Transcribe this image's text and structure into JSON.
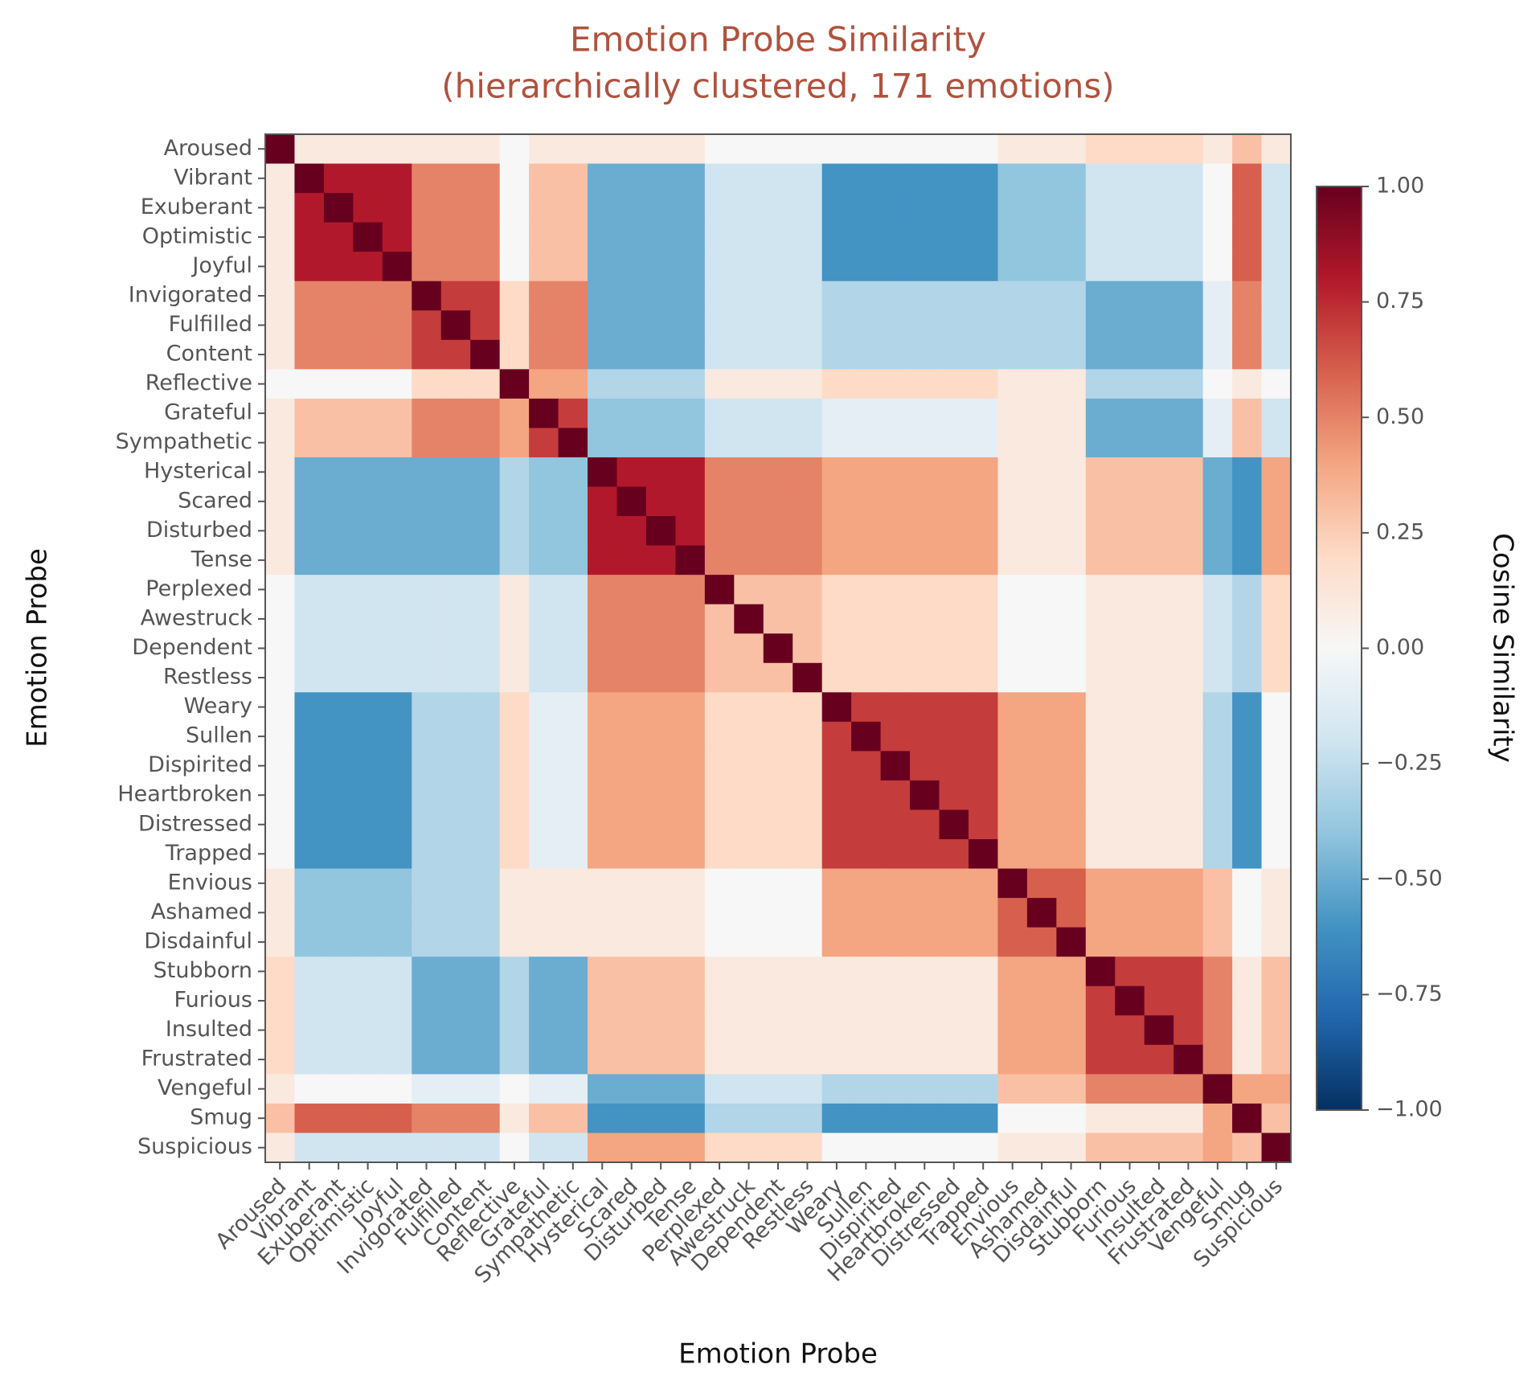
{
  "chart_data": {
    "type": "heatmap",
    "title": "Emotion Probe Similarity",
    "subtitle": "(hierarchically clustered, 171 emotions)",
    "x_label": "Emotion Probe",
    "y_label": "Emotion Probe",
    "colorbar_label": "Cosine Similarity",
    "categories": [
      "Aroused",
      "Vibrant",
      "Exuberant",
      "Optimistic",
      "Joyful",
      "Invigorated",
      "Fulfilled",
      "Content",
      "Reflective",
      "Grateful",
      "Sympathetic",
      "Hysterical",
      "Scared",
      "Disturbed",
      "Tense",
      "Perplexed",
      "Awestruck",
      "Dependent",
      "Restless",
      "Weary",
      "Sullen",
      "Dispirited",
      "Heartbroken",
      "Distressed",
      "Trapped",
      "Envious",
      "Ashamed",
      "Disdainful",
      "Stubborn",
      "Furious",
      "Insulted",
      "Frustrated",
      "Vengeful",
      "Smug",
      "Suspicious"
    ],
    "zlim": [
      -1,
      1
    ],
    "zticks": [
      {
        "value": 1,
        "label": "1.00"
      },
      {
        "value": 0.75,
        "label": "0.75"
      },
      {
        "value": 0.5,
        "label": "0.50"
      },
      {
        "value": 0.25,
        "label": "0.25"
      },
      {
        "value": 0,
        "label": "0.00"
      },
      {
        "value": -0.25,
        "label": "−0.25"
      },
      {
        "value": -0.5,
        "label": "−0.50"
      },
      {
        "value": -0.75,
        "label": "−0.75"
      },
      {
        "value": -1,
        "label": "−1.00"
      }
    ],
    "colormap": [
      "#053061",
      "#2166ac",
      "#4393c3",
      "#92c5de",
      "#d1e5f0",
      "#f7f7f7",
      "#fddbc7",
      "#f4a582",
      "#d6604d",
      "#b2182b",
      "#67001f"
    ],
    "values": [
      [
        1,
        0.1,
        0.1,
        0.1,
        0.1,
        0.1,
        0.1,
        0.1,
        0,
        0.1,
        0.1,
        0.1,
        0.1,
        0.1,
        0.1,
        0,
        0,
        0,
        0,
        0,
        0,
        0,
        0,
        0,
        0,
        0.1,
        0.1,
        0.1,
        0.2,
        0.2,
        0.2,
        0.2,
        0.1,
        0.3,
        0.1
      ],
      [
        0.1,
        1,
        0.8,
        0.8,
        0.8,
        0.5,
        0.5,
        0.5,
        0,
        0.3,
        0.3,
        -0.5,
        -0.5,
        -0.5,
        -0.5,
        -0.2,
        -0.2,
        -0.2,
        -0.2,
        -0.6,
        -0.6,
        -0.6,
        -0.6,
        -0.6,
        -0.6,
        -0.4,
        -0.4,
        -0.4,
        -0.2,
        -0.2,
        -0.2,
        -0.2,
        0,
        0.6,
        -0.2
      ],
      [
        0.1,
        0.8,
        1,
        0.8,
        0.8,
        0.5,
        0.5,
        0.5,
        0,
        0.3,
        0.3,
        -0.5,
        -0.5,
        -0.5,
        -0.5,
        -0.2,
        -0.2,
        -0.2,
        -0.2,
        -0.6,
        -0.6,
        -0.6,
        -0.6,
        -0.6,
        -0.6,
        -0.4,
        -0.4,
        -0.4,
        -0.2,
        -0.2,
        -0.2,
        -0.2,
        0,
        0.6,
        -0.2
      ],
      [
        0.1,
        0.8,
        0.8,
        1,
        0.8,
        0.5,
        0.5,
        0.5,
        0,
        0.3,
        0.3,
        -0.5,
        -0.5,
        -0.5,
        -0.5,
        -0.2,
        -0.2,
        -0.2,
        -0.2,
        -0.6,
        -0.6,
        -0.6,
        -0.6,
        -0.6,
        -0.6,
        -0.4,
        -0.4,
        -0.4,
        -0.2,
        -0.2,
        -0.2,
        -0.2,
        0,
        0.6,
        -0.2
      ],
      [
        0.1,
        0.8,
        0.8,
        0.8,
        1,
        0.5,
        0.5,
        0.5,
        0,
        0.3,
        0.3,
        -0.5,
        -0.5,
        -0.5,
        -0.5,
        -0.2,
        -0.2,
        -0.2,
        -0.2,
        -0.6,
        -0.6,
        -0.6,
        -0.6,
        -0.6,
        -0.6,
        -0.4,
        -0.4,
        -0.4,
        -0.2,
        -0.2,
        -0.2,
        -0.2,
        0,
        0.6,
        -0.2
      ],
      [
        0.1,
        0.5,
        0.5,
        0.5,
        0.5,
        1,
        0.7,
        0.7,
        0.2,
        0.5,
        0.5,
        -0.5,
        -0.5,
        -0.5,
        -0.5,
        -0.2,
        -0.2,
        -0.2,
        -0.2,
        -0.3,
        -0.3,
        -0.3,
        -0.3,
        -0.3,
        -0.3,
        -0.3,
        -0.3,
        -0.3,
        -0.5,
        -0.5,
        -0.5,
        -0.5,
        -0.1,
        0.5,
        -0.2
      ],
      [
        0.1,
        0.5,
        0.5,
        0.5,
        0.5,
        0.7,
        1,
        0.7,
        0.2,
        0.5,
        0.5,
        -0.5,
        -0.5,
        -0.5,
        -0.5,
        -0.2,
        -0.2,
        -0.2,
        -0.2,
        -0.3,
        -0.3,
        -0.3,
        -0.3,
        -0.3,
        -0.3,
        -0.3,
        -0.3,
        -0.3,
        -0.5,
        -0.5,
        -0.5,
        -0.5,
        -0.1,
        0.5,
        -0.2
      ],
      [
        0.1,
        0.5,
        0.5,
        0.5,
        0.5,
        0.7,
        0.7,
        1,
        0.2,
        0.5,
        0.5,
        -0.5,
        -0.5,
        -0.5,
        -0.5,
        -0.2,
        -0.2,
        -0.2,
        -0.2,
        -0.3,
        -0.3,
        -0.3,
        -0.3,
        -0.3,
        -0.3,
        -0.3,
        -0.3,
        -0.3,
        -0.5,
        -0.5,
        -0.5,
        -0.5,
        -0.1,
        0.5,
        -0.2
      ],
      [
        0,
        0,
        0,
        0,
        0,
        0.2,
        0.2,
        0.2,
        1,
        0.4,
        0.4,
        -0.3,
        -0.3,
        -0.3,
        -0.3,
        0.1,
        0.1,
        0.1,
        0.1,
        0.2,
        0.2,
        0.2,
        0.2,
        0.2,
        0.2,
        0.1,
        0.1,
        0.1,
        -0.3,
        -0.3,
        -0.3,
        -0.3,
        0,
        0.1,
        0
      ],
      [
        0.1,
        0.3,
        0.3,
        0.3,
        0.3,
        0.5,
        0.5,
        0.5,
        0.4,
        1,
        0.7,
        -0.4,
        -0.4,
        -0.4,
        -0.4,
        -0.2,
        -0.2,
        -0.2,
        -0.2,
        -0.1,
        -0.1,
        -0.1,
        -0.1,
        -0.1,
        -0.1,
        0.1,
        0.1,
        0.1,
        -0.5,
        -0.5,
        -0.5,
        -0.5,
        -0.1,
        0.3,
        -0.2
      ],
      [
        0.1,
        0.3,
        0.3,
        0.3,
        0.3,
        0.5,
        0.5,
        0.5,
        0.4,
        0.7,
        1,
        -0.4,
        -0.4,
        -0.4,
        -0.4,
        -0.2,
        -0.2,
        -0.2,
        -0.2,
        -0.1,
        -0.1,
        -0.1,
        -0.1,
        -0.1,
        -0.1,
        0.1,
        0.1,
        0.1,
        -0.5,
        -0.5,
        -0.5,
        -0.5,
        -0.1,
        0.3,
        -0.2
      ],
      [
        0.1,
        -0.5,
        -0.5,
        -0.5,
        -0.5,
        -0.5,
        -0.5,
        -0.5,
        -0.3,
        -0.4,
        -0.4,
        1,
        0.8,
        0.8,
        0.8,
        0.5,
        0.5,
        0.5,
        0.5,
        0.4,
        0.4,
        0.4,
        0.4,
        0.4,
        0.4,
        0.1,
        0.1,
        0.1,
        0.3,
        0.3,
        0.3,
        0.3,
        -0.5,
        -0.6,
        0.4
      ],
      [
        0.1,
        -0.5,
        -0.5,
        -0.5,
        -0.5,
        -0.5,
        -0.5,
        -0.5,
        -0.3,
        -0.4,
        -0.4,
        0.8,
        1,
        0.8,
        0.8,
        0.5,
        0.5,
        0.5,
        0.5,
        0.4,
        0.4,
        0.4,
        0.4,
        0.4,
        0.4,
        0.1,
        0.1,
        0.1,
        0.3,
        0.3,
        0.3,
        0.3,
        -0.5,
        -0.6,
        0.4
      ],
      [
        0.1,
        -0.5,
        -0.5,
        -0.5,
        -0.5,
        -0.5,
        -0.5,
        -0.5,
        -0.3,
        -0.4,
        -0.4,
        0.8,
        0.8,
        1,
        0.8,
        0.5,
        0.5,
        0.5,
        0.5,
        0.4,
        0.4,
        0.4,
        0.4,
        0.4,
        0.4,
        0.1,
        0.1,
        0.1,
        0.3,
        0.3,
        0.3,
        0.3,
        -0.5,
        -0.6,
        0.4
      ],
      [
        0.1,
        -0.5,
        -0.5,
        -0.5,
        -0.5,
        -0.5,
        -0.5,
        -0.5,
        -0.3,
        -0.4,
        -0.4,
        0.8,
        0.8,
        0.8,
        1,
        0.5,
        0.5,
        0.5,
        0.5,
        0.4,
        0.4,
        0.4,
        0.4,
        0.4,
        0.4,
        0.1,
        0.1,
        0.1,
        0.3,
        0.3,
        0.3,
        0.3,
        -0.5,
        -0.6,
        0.4
      ],
      [
        0,
        -0.2,
        -0.2,
        -0.2,
        -0.2,
        -0.2,
        -0.2,
        -0.2,
        0.1,
        -0.2,
        -0.2,
        0.5,
        0.5,
        0.5,
        0.5,
        1,
        0.3,
        0.3,
        0.3,
        0.2,
        0.2,
        0.2,
        0.2,
        0.2,
        0.2,
        0,
        0,
        0,
        0.1,
        0.1,
        0.1,
        0.1,
        -0.2,
        -0.3,
        0.2
      ],
      [
        0,
        -0.2,
        -0.2,
        -0.2,
        -0.2,
        -0.2,
        -0.2,
        -0.2,
        0.1,
        -0.2,
        -0.2,
        0.5,
        0.5,
        0.5,
        0.5,
        0.3,
        1,
        0.3,
        0.3,
        0.2,
        0.2,
        0.2,
        0.2,
        0.2,
        0.2,
        0,
        0,
        0,
        0.1,
        0.1,
        0.1,
        0.1,
        -0.2,
        -0.3,
        0.2
      ],
      [
        0,
        -0.2,
        -0.2,
        -0.2,
        -0.2,
        -0.2,
        -0.2,
        -0.2,
        0.1,
        -0.2,
        -0.2,
        0.5,
        0.5,
        0.5,
        0.5,
        0.3,
        0.3,
        1,
        0.3,
        0.2,
        0.2,
        0.2,
        0.2,
        0.2,
        0.2,
        0,
        0,
        0,
        0.1,
        0.1,
        0.1,
        0.1,
        -0.2,
        -0.3,
        0.2
      ],
      [
        0,
        -0.2,
        -0.2,
        -0.2,
        -0.2,
        -0.2,
        -0.2,
        -0.2,
        0.1,
        -0.2,
        -0.2,
        0.5,
        0.5,
        0.5,
        0.5,
        0.3,
        0.3,
        0.3,
        1,
        0.2,
        0.2,
        0.2,
        0.2,
        0.2,
        0.2,
        0,
        0,
        0,
        0.1,
        0.1,
        0.1,
        0.1,
        -0.2,
        -0.3,
        0.2
      ],
      [
        0,
        -0.6,
        -0.6,
        -0.6,
        -0.6,
        -0.3,
        -0.3,
        -0.3,
        0.2,
        -0.1,
        -0.1,
        0.4,
        0.4,
        0.4,
        0.4,
        0.2,
        0.2,
        0.2,
        0.2,
        1,
        0.7,
        0.7,
        0.7,
        0.7,
        0.7,
        0.4,
        0.4,
        0.4,
        0.1,
        0.1,
        0.1,
        0.1,
        -0.3,
        -0.6,
        0
      ],
      [
        0,
        -0.6,
        -0.6,
        -0.6,
        -0.6,
        -0.3,
        -0.3,
        -0.3,
        0.2,
        -0.1,
        -0.1,
        0.4,
        0.4,
        0.4,
        0.4,
        0.2,
        0.2,
        0.2,
        0.2,
        0.7,
        1,
        0.7,
        0.7,
        0.7,
        0.7,
        0.4,
        0.4,
        0.4,
        0.1,
        0.1,
        0.1,
        0.1,
        -0.3,
        -0.6,
        0
      ],
      [
        0,
        -0.6,
        -0.6,
        -0.6,
        -0.6,
        -0.3,
        -0.3,
        -0.3,
        0.2,
        -0.1,
        -0.1,
        0.4,
        0.4,
        0.4,
        0.4,
        0.2,
        0.2,
        0.2,
        0.2,
        0.7,
        0.7,
        1,
        0.7,
        0.7,
        0.7,
        0.4,
        0.4,
        0.4,
        0.1,
        0.1,
        0.1,
        0.1,
        -0.3,
        -0.6,
        0
      ],
      [
        0,
        -0.6,
        -0.6,
        -0.6,
        -0.6,
        -0.3,
        -0.3,
        -0.3,
        0.2,
        -0.1,
        -0.1,
        0.4,
        0.4,
        0.4,
        0.4,
        0.2,
        0.2,
        0.2,
        0.2,
        0.7,
        0.7,
        0.7,
        1,
        0.7,
        0.7,
        0.4,
        0.4,
        0.4,
        0.1,
        0.1,
        0.1,
        0.1,
        -0.3,
        -0.6,
        0
      ],
      [
        0,
        -0.6,
        -0.6,
        -0.6,
        -0.6,
        -0.3,
        -0.3,
        -0.3,
        0.2,
        -0.1,
        -0.1,
        0.4,
        0.4,
        0.4,
        0.4,
        0.2,
        0.2,
        0.2,
        0.2,
        0.7,
        0.7,
        0.7,
        0.7,
        1,
        0.7,
        0.4,
        0.4,
        0.4,
        0.1,
        0.1,
        0.1,
        0.1,
        -0.3,
        -0.6,
        0
      ],
      [
        0,
        -0.6,
        -0.6,
        -0.6,
        -0.6,
        -0.3,
        -0.3,
        -0.3,
        0.2,
        -0.1,
        -0.1,
        0.4,
        0.4,
        0.4,
        0.4,
        0.2,
        0.2,
        0.2,
        0.2,
        0.7,
        0.7,
        0.7,
        0.7,
        0.7,
        1,
        0.4,
        0.4,
        0.4,
        0.1,
        0.1,
        0.1,
        0.1,
        -0.3,
        -0.6,
        0
      ],
      [
        0.1,
        -0.4,
        -0.4,
        -0.4,
        -0.4,
        -0.3,
        -0.3,
        -0.3,
        0.1,
        0.1,
        0.1,
        0.1,
        0.1,
        0.1,
        0.1,
        0,
        0,
        0,
        0,
        0.4,
        0.4,
        0.4,
        0.4,
        0.4,
        0.4,
        1,
        0.6,
        0.6,
        0.4,
        0.4,
        0.4,
        0.4,
        0.3,
        0,
        0.1
      ],
      [
        0.1,
        -0.4,
        -0.4,
        -0.4,
        -0.4,
        -0.3,
        -0.3,
        -0.3,
        0.1,
        0.1,
        0.1,
        0.1,
        0.1,
        0.1,
        0.1,
        0,
        0,
        0,
        0,
        0.4,
        0.4,
        0.4,
        0.4,
        0.4,
        0.4,
        0.6,
        1,
        0.6,
        0.4,
        0.4,
        0.4,
        0.4,
        0.3,
        0,
        0.1
      ],
      [
        0.1,
        -0.4,
        -0.4,
        -0.4,
        -0.4,
        -0.3,
        -0.3,
        -0.3,
        0.1,
        0.1,
        0.1,
        0.1,
        0.1,
        0.1,
        0.1,
        0,
        0,
        0,
        0,
        0.4,
        0.4,
        0.4,
        0.4,
        0.4,
        0.4,
        0.6,
        0.6,
        1,
        0.4,
        0.4,
        0.4,
        0.4,
        0.3,
        0,
        0.1
      ],
      [
        0.2,
        -0.2,
        -0.2,
        -0.2,
        -0.2,
        -0.5,
        -0.5,
        -0.5,
        -0.3,
        -0.5,
        -0.5,
        0.3,
        0.3,
        0.3,
        0.3,
        0.1,
        0.1,
        0.1,
        0.1,
        0.1,
        0.1,
        0.1,
        0.1,
        0.1,
        0.1,
        0.4,
        0.4,
        0.4,
        1,
        0.7,
        0.7,
        0.7,
        0.5,
        0.1,
        0.3
      ],
      [
        0.2,
        -0.2,
        -0.2,
        -0.2,
        -0.2,
        -0.5,
        -0.5,
        -0.5,
        -0.3,
        -0.5,
        -0.5,
        0.3,
        0.3,
        0.3,
        0.3,
        0.1,
        0.1,
        0.1,
        0.1,
        0.1,
        0.1,
        0.1,
        0.1,
        0.1,
        0.1,
        0.4,
        0.4,
        0.4,
        0.7,
        1,
        0.7,
        0.7,
        0.5,
        0.1,
        0.3
      ],
      [
        0.2,
        -0.2,
        -0.2,
        -0.2,
        -0.2,
        -0.5,
        -0.5,
        -0.5,
        -0.3,
        -0.5,
        -0.5,
        0.3,
        0.3,
        0.3,
        0.3,
        0.1,
        0.1,
        0.1,
        0.1,
        0.1,
        0.1,
        0.1,
        0.1,
        0.1,
        0.1,
        0.4,
        0.4,
        0.4,
        0.7,
        0.7,
        1,
        0.7,
        0.5,
        0.1,
        0.3
      ],
      [
        0.2,
        -0.2,
        -0.2,
        -0.2,
        -0.2,
        -0.5,
        -0.5,
        -0.5,
        -0.3,
        -0.5,
        -0.5,
        0.3,
        0.3,
        0.3,
        0.3,
        0.1,
        0.1,
        0.1,
        0.1,
        0.1,
        0.1,
        0.1,
        0.1,
        0.1,
        0.1,
        0.4,
        0.4,
        0.4,
        0.7,
        0.7,
        0.7,
        1,
        0.5,
        0.1,
        0.3
      ],
      [
        0.1,
        0,
        0,
        0,
        0,
        -0.1,
        -0.1,
        -0.1,
        0,
        -0.1,
        -0.1,
        -0.5,
        -0.5,
        -0.5,
        -0.5,
        -0.2,
        -0.2,
        -0.2,
        -0.2,
        -0.3,
        -0.3,
        -0.3,
        -0.3,
        -0.3,
        -0.3,
        0.3,
        0.3,
        0.3,
        0.5,
        0.5,
        0.5,
        0.5,
        1,
        0.4,
        0.4
      ],
      [
        0.3,
        0.6,
        0.6,
        0.6,
        0.6,
        0.5,
        0.5,
        0.5,
        0.1,
        0.3,
        0.3,
        -0.6,
        -0.6,
        -0.6,
        -0.6,
        -0.3,
        -0.3,
        -0.3,
        -0.3,
        -0.6,
        -0.6,
        -0.6,
        -0.6,
        -0.6,
        -0.6,
        0,
        0,
        0,
        0.1,
        0.1,
        0.1,
        0.1,
        0.4,
        1,
        0.3
      ],
      [
        0.1,
        -0.2,
        -0.2,
        -0.2,
        -0.2,
        -0.2,
        -0.2,
        -0.2,
        0,
        -0.2,
        -0.2,
        0.4,
        0.4,
        0.4,
        0.4,
        0.2,
        0.2,
        0.2,
        0.2,
        0,
        0,
        0,
        0,
        0,
        0,
        0.1,
        0.1,
        0.1,
        0.3,
        0.3,
        0.3,
        0.3,
        0.4,
        0.3,
        1
      ]
    ]
  }
}
